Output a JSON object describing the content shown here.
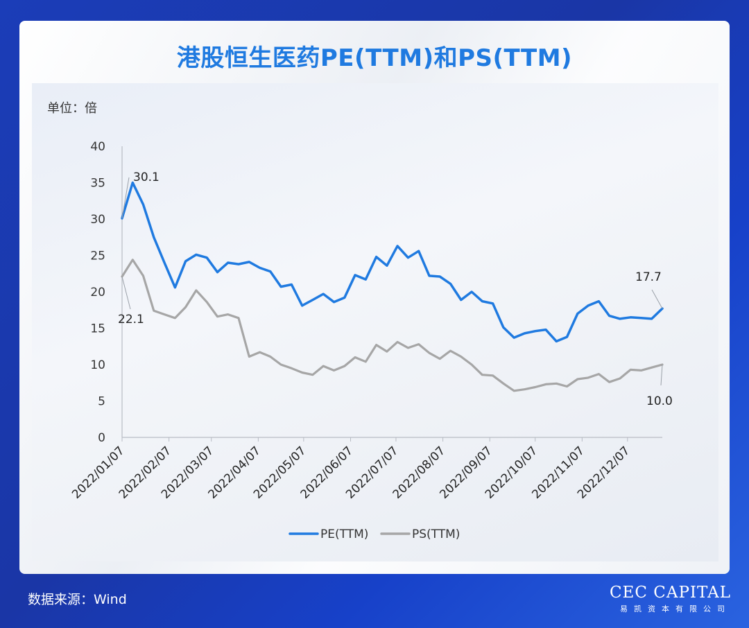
{
  "title": "港股恒生医药PE(TTM)和PS(TTM)",
  "unit_label": "单位：倍",
  "source": "数据来源：Wind",
  "brand": {
    "name": "CEC CAPITAL",
    "sub": "易凯资本有限公司"
  },
  "colors": {
    "pe": "#1f7ae0",
    "ps": "#a6a6a6",
    "title": "#1f7ae0"
  },
  "chart_data": {
    "type": "line",
    "title": "港股恒生医药PE(TTM)和PS(TTM)",
    "ylabel": "单位：倍",
    "ylim": [
      0,
      40
    ],
    "yticks": [
      0,
      5,
      10,
      15,
      20,
      25,
      30,
      35,
      40
    ],
    "xlim": [
      "2022/01/07",
      "2022/12/30"
    ],
    "xticks": [
      "2022/01/07",
      "2022/02/07",
      "2022/03/07",
      "2022/04/07",
      "2022/05/07",
      "2022/06/07",
      "2022/07/07",
      "2022/08/07",
      "2022/09/07",
      "2022/10/07",
      "2022/11/07",
      "2022/12/07"
    ],
    "grid": false,
    "legend": "bottom",
    "series": [
      {
        "name": "PE(TTM)",
        "values": [
          30.1,
          35.0,
          32.0,
          27.5,
          24.0,
          20.6,
          24.2,
          25.1,
          24.7,
          22.7,
          24.0,
          23.8,
          24.1,
          23.3,
          22.8,
          20.7,
          21.0,
          18.1,
          18.9,
          19.7,
          18.6,
          19.2,
          22.3,
          21.7,
          24.8,
          23.6,
          26.3,
          24.7,
          25.6,
          22.2,
          22.1,
          21.1,
          18.9,
          20.0,
          18.7,
          18.4,
          15.1,
          13.7,
          14.3,
          14.6,
          14.8,
          13.2,
          13.8,
          17.0,
          18.1,
          18.7,
          16.7,
          16.3,
          16.5,
          16.4,
          16.3,
          17.7
        ]
      },
      {
        "name": "PS(TTM)",
        "values": [
          22.1,
          24.4,
          22.2,
          17.4,
          16.9,
          16.4,
          17.9,
          20.2,
          18.6,
          16.6,
          16.9,
          16.4,
          11.1,
          11.7,
          11.1,
          10.0,
          9.5,
          8.9,
          8.6,
          9.8,
          9.2,
          9.8,
          11.0,
          10.4,
          12.7,
          11.8,
          13.1,
          12.3,
          12.8,
          11.6,
          10.8,
          11.9,
          11.1,
          10.0,
          8.6,
          8.5,
          7.4,
          6.4,
          6.6,
          6.9,
          7.3,
          7.4,
          7.0,
          8.0,
          8.2,
          8.7,
          7.6,
          8.1,
          9.3,
          9.2,
          9.6,
          10.0
        ]
      }
    ],
    "annotations": [
      {
        "series": "PE(TTM)",
        "point": "first",
        "text": "30.1"
      },
      {
        "series": "PS(TTM)",
        "point": "first",
        "text": "22.1"
      },
      {
        "series": "PE(TTM)",
        "point": "last",
        "text": "17.7"
      },
      {
        "series": "PS(TTM)",
        "point": "last",
        "text": "10.0"
      }
    ]
  }
}
